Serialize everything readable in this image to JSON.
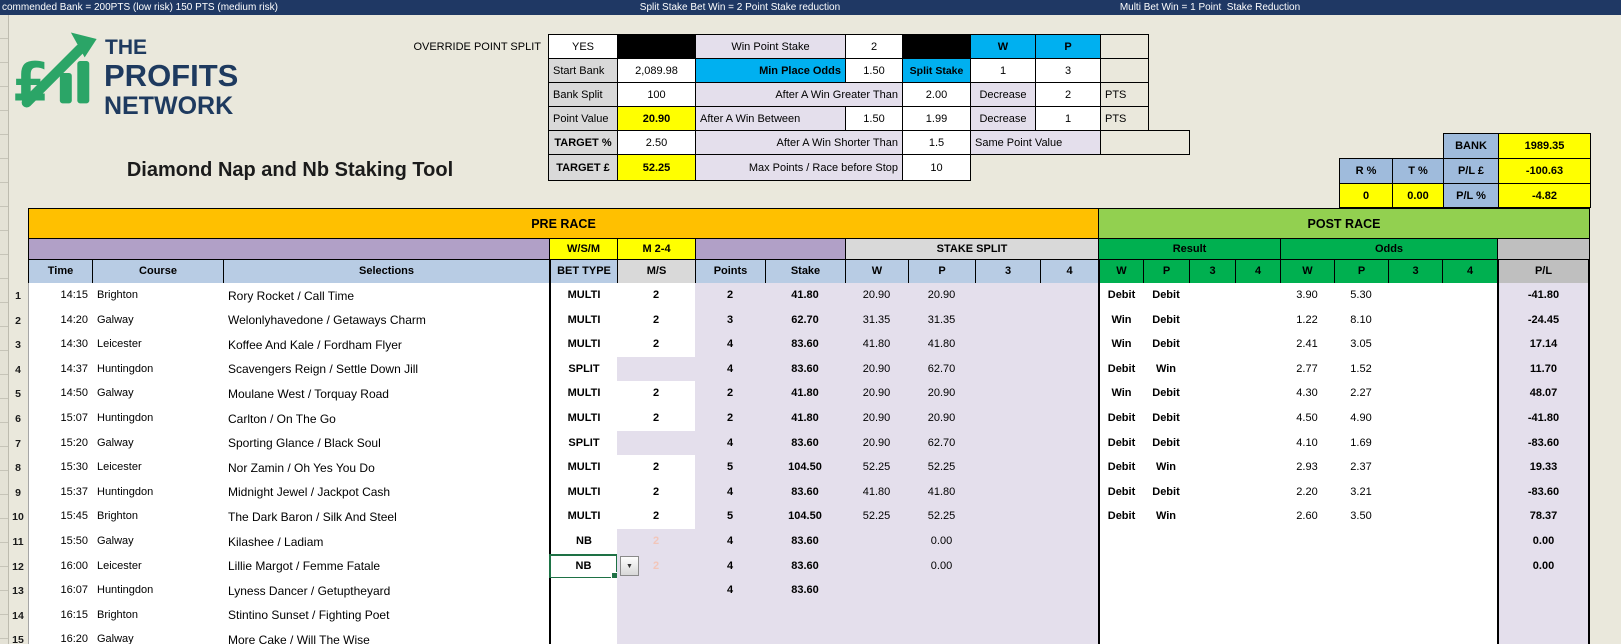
{
  "top_bar": {
    "left": "commended Bank = 200PTS (low risk) 150 PTS (medium risk)",
    "center": "Split Stake Bet Win = 2 Point Stake reduction",
    "right": "Multi Bet Win = 1 Point  Stake Reduction"
  },
  "logo": {
    "line1": "THE",
    "line2": "PROFITS",
    "line3": "NETWORK",
    "icon": "pound-growth-chart-icon"
  },
  "title": "Diamond Nap and Nb Staking Tool",
  "settings": {
    "override_label": "OVERRIDE POINT SPLIT",
    "override_value": "YES",
    "start_bank_label": "Start Bank",
    "start_bank_value": "2,089.98",
    "bank_split_label": "Bank Split",
    "bank_split_value": "100",
    "point_value_label": "Point Value",
    "point_value_value": "20.90",
    "target_pct_label": "TARGET %",
    "target_pct_value": "2.50",
    "target_gbp_label": "TARGET £",
    "target_gbp_value": "52.25",
    "win_point_stake_label": "Win Point Stake",
    "win_point_stake_value": "2",
    "min_place_odds_label": "Min Place Odds",
    "min_place_odds_value": "1.50",
    "after_win_greater_label": "After A Win Greater Than",
    "after_win_greater_value": "2.00",
    "after_win_between_label": "After A Win Between",
    "after_win_between_low": "1.50",
    "after_win_between_high": "1.99",
    "after_win_shorter_label": "After A Win Shorter Than",
    "after_win_shorter_value": "1.5",
    "max_points_label": "Max Points / Race before Stop",
    "max_points_value": "10",
    "w_header": "W",
    "p_header": "P",
    "split_stake_label": "Split Stake",
    "split_stake_w": "1",
    "split_stake_p": "3",
    "decrease1_label": "Decrease",
    "decrease1_value": "2",
    "decrease1_unit": "PTS",
    "decrease2_label": "Decrease",
    "decrease2_value": "1",
    "decrease2_unit": "PTS",
    "same_point_label": "Same Point Value"
  },
  "summary": {
    "bank_label": "BANK",
    "bank_value": "1989.35",
    "r_pct_label": "R %",
    "t_pct_label": "T %",
    "pl_gbp_label": "P/L £",
    "r_pct_value": "0",
    "t_pct_value": "0.00",
    "pl_gbp_value": "-100.63",
    "pl_pct_label": "P/L %",
    "pl_pct_value": "-4.82"
  },
  "table": {
    "pre_race_label": "PRE RACE",
    "post_race_label": "POST RACE",
    "wsm_label": "W/S/M",
    "m24_label": "M 2-4",
    "stake_split_label": "STAKE SPLIT",
    "result_label": "Result",
    "odds_label": "Odds",
    "headers": [
      "Time",
      "Course",
      "Selections",
      "BET TYPE",
      "M/S",
      "Points",
      "Stake",
      "W",
      "P",
      "3",
      "4",
      "W",
      "P",
      "3",
      "4",
      "W",
      "P",
      "3",
      "4",
      "P/L"
    ],
    "rows": [
      {
        "num": "1",
        "time": "14:15",
        "course": "Brighton",
        "selection": "Rory Rocket / Call Time",
        "bet_type": "MULTI",
        "ms": "2",
        "ms_filled": true,
        "points": "2",
        "stake": "41.80",
        "split_w": "20.90",
        "split_p": "20.90",
        "split_3": "",
        "split_4": "",
        "res_w": "Debit",
        "res_p": "Debit",
        "res_3": "",
        "res_4": "",
        "odds_w": "3.90",
        "odds_p": "5.30",
        "odds_3": "",
        "odds_4": "",
        "pl": "-41.80"
      },
      {
        "num": "2",
        "time": "14:20",
        "course": "Galway",
        "selection": "Welonlyhavedone / Getaways Charm",
        "bet_type": "MULTI",
        "ms": "2",
        "ms_filled": true,
        "points": "3",
        "stake": "62.70",
        "split_w": "31.35",
        "split_p": "31.35",
        "split_3": "",
        "split_4": "",
        "res_w": "Win",
        "res_p": "Debit",
        "res_3": "",
        "res_4": "",
        "odds_w": "1.22",
        "odds_p": "8.10",
        "odds_3": "",
        "odds_4": "",
        "pl": "-24.45"
      },
      {
        "num": "3",
        "time": "14:30",
        "course": "Leicester",
        "selection": "Koffee And Kale / Fordham Flyer",
        "bet_type": "MULTI",
        "ms": "2",
        "ms_filled": true,
        "points": "4",
        "stake": "83.60",
        "split_w": "41.80",
        "split_p": "41.80",
        "split_3": "",
        "split_4": "",
        "res_w": "Win",
        "res_p": "Debit",
        "res_3": "",
        "res_4": "",
        "odds_w": "2.41",
        "odds_p": "3.05",
        "odds_3": "",
        "odds_4": "",
        "pl": "17.14"
      },
      {
        "num": "4",
        "time": "14:37",
        "course": "Huntingdon",
        "selection": "Scavengers Reign / Settle Down Jill",
        "bet_type": "SPLIT",
        "ms": "",
        "ms_filled": false,
        "points": "4",
        "stake": "83.60",
        "split_w": "20.90",
        "split_p": "62.70",
        "split_3": "",
        "split_4": "",
        "res_w": "Debit",
        "res_p": "Win",
        "res_3": "",
        "res_4": "",
        "odds_w": "2.77",
        "odds_p": "1.52",
        "odds_3": "",
        "odds_4": "",
        "pl": "11.70"
      },
      {
        "num": "5",
        "time": "14:50",
        "course": "Galway",
        "selection": "Moulane West / Torquay Road",
        "bet_type": "MULTI",
        "ms": "2",
        "ms_filled": true,
        "points": "2",
        "stake": "41.80",
        "split_w": "20.90",
        "split_p": "20.90",
        "split_3": "",
        "split_4": "",
        "res_w": "Win",
        "res_p": "Debit",
        "res_3": "",
        "res_4": "",
        "odds_w": "4.30",
        "odds_p": "2.27",
        "odds_3": "",
        "odds_4": "",
        "pl": "48.07"
      },
      {
        "num": "6",
        "time": "15:07",
        "course": "Huntingdon",
        "selection": "Carlton / On The Go",
        "bet_type": "MULTI",
        "ms": "2",
        "ms_filled": true,
        "points": "2",
        "stake": "41.80",
        "split_w": "20.90",
        "split_p": "20.90",
        "split_3": "",
        "split_4": "",
        "res_w": "Debit",
        "res_p": "Debit",
        "res_3": "",
        "res_4": "",
        "odds_w": "4.50",
        "odds_p": "4.90",
        "odds_3": "",
        "odds_4": "",
        "pl": "-41.80"
      },
      {
        "num": "7",
        "time": "15:20",
        "course": "Galway",
        "selection": "Sporting Glance / Black Soul",
        "bet_type": "SPLIT",
        "ms": "",
        "ms_filled": false,
        "points": "4",
        "stake": "83.60",
        "split_w": "20.90",
        "split_p": "62.70",
        "split_3": "",
        "split_4": "",
        "res_w": "Debit",
        "res_p": "Debit",
        "res_3": "",
        "res_4": "",
        "odds_w": "4.10",
        "odds_p": "1.69",
        "odds_3": "",
        "odds_4": "",
        "pl": "-83.60"
      },
      {
        "num": "8",
        "time": "15:30",
        "course": "Leicester",
        "selection": "Nor Zamin / Oh Yes You Do",
        "bet_type": "MULTI",
        "ms": "2",
        "ms_filled": true,
        "points": "5",
        "stake": "104.50",
        "split_w": "52.25",
        "split_p": "52.25",
        "split_3": "",
        "split_4": "",
        "res_w": "Debit",
        "res_p": "Win",
        "res_3": "",
        "res_4": "",
        "odds_w": "2.93",
        "odds_p": "2.37",
        "odds_3": "",
        "odds_4": "",
        "pl": "19.33"
      },
      {
        "num": "9",
        "time": "15:37",
        "course": "Huntingdon",
        "selection": "Midnight Jewel / Jackpot Cash",
        "bet_type": "MULTI",
        "ms": "2",
        "ms_filled": true,
        "points": "4",
        "stake": "83.60",
        "split_w": "41.80",
        "split_p": "41.80",
        "split_3": "",
        "split_4": "",
        "res_w": "Debit",
        "res_p": "Debit",
        "res_3": "",
        "res_4": "",
        "odds_w": "2.20",
        "odds_p": "3.21",
        "odds_3": "",
        "odds_4": "",
        "pl": "-83.60"
      },
      {
        "num": "10",
        "time": "15:45",
        "course": "Brighton",
        "selection": "The Dark Baron / Silk And Steel",
        "bet_type": "MULTI",
        "ms": "2",
        "ms_filled": true,
        "points": "5",
        "stake": "104.50",
        "split_w": "52.25",
        "split_p": "52.25",
        "split_3": "",
        "split_4": "",
        "res_w": "Debit",
        "res_p": "Win",
        "res_3": "",
        "res_4": "",
        "odds_w": "2.60",
        "odds_p": "3.50",
        "odds_3": "",
        "odds_4": "",
        "pl": "78.37"
      },
      {
        "num": "11",
        "time": "15:50",
        "course": "Galway",
        "selection": "Kilashee / Ladiam",
        "bet_type": "NB",
        "ms": "2",
        "ms_filled": false,
        "ms_ghost": true,
        "points": "4",
        "stake": "83.60",
        "split_w": "",
        "split_p": "0.00",
        "split_3": "",
        "split_4": "",
        "res_w": "",
        "res_p": "",
        "res_3": "",
        "res_4": "",
        "odds_w": "",
        "odds_p": "",
        "odds_3": "",
        "odds_4": "",
        "pl": "0.00"
      },
      {
        "num": "12",
        "time": "16:00",
        "course": "Leicester",
        "selection": "Lillie Margot / Femme Fatale",
        "bet_type": "NB",
        "selected": true,
        "has_dropdown": true,
        "ms": "2",
        "ms_filled": false,
        "ms_ghost": true,
        "points": "4",
        "stake": "83.60",
        "split_w": "",
        "split_p": "0.00",
        "split_3": "",
        "split_4": "",
        "res_w": "",
        "res_p": "",
        "res_3": "",
        "res_4": "",
        "odds_w": "",
        "odds_p": "",
        "odds_3": "",
        "odds_4": "",
        "pl": "0.00"
      },
      {
        "num": "13",
        "time": "16:07",
        "course": "Huntingdon",
        "selection": "Lyness Dancer / Getuptheyard",
        "bet_type": "",
        "ms": "",
        "ms_filled": false,
        "points": "4",
        "stake": "83.60",
        "split_w": "",
        "split_p": "",
        "split_3": "",
        "split_4": "",
        "res_w": "",
        "res_p": "",
        "res_3": "",
        "res_4": "",
        "odds_w": "",
        "odds_p": "",
        "odds_3": "",
        "odds_4": "",
        "pl": ""
      },
      {
        "num": "14",
        "time": "16:15",
        "course": "Brighton",
        "selection": "Stintino Sunset / Fighting Poet",
        "bet_type": "",
        "ms": "",
        "ms_filled": false,
        "points": "",
        "stake": "",
        "split_w": "",
        "split_p": "",
        "split_3": "",
        "split_4": "",
        "res_w": "",
        "res_p": "",
        "res_3": "",
        "res_4": "",
        "odds_w": "",
        "odds_p": "",
        "odds_3": "",
        "odds_4": "",
        "pl": ""
      },
      {
        "num": "15",
        "time": "16:20",
        "course": "Galway",
        "selection": "More Cake / Will The Wise",
        "bet_type": "",
        "ms": "",
        "ms_filled": false,
        "points": "",
        "stake": "",
        "split_w": "",
        "split_p": "",
        "split_3": "",
        "split_4": "",
        "res_w": "",
        "res_p": "",
        "res_3": "",
        "res_4": "",
        "odds_w": "",
        "odds_p": "",
        "odds_3": "",
        "odds_4": "",
        "pl": ""
      }
    ]
  },
  "colors": {
    "navy_bar": "#1F3864",
    "orange": "#FFC000",
    "post_race_green": "#92D050",
    "result_green": "#00B050",
    "cyan": "#00B0F0",
    "yellow": "#FFFF00",
    "lavender": "#E4DFEC",
    "purple_band": "#B1A0C7",
    "header_blue": "#B8CCE4",
    "summary_blue": "#9FBBDC",
    "logo_green": "#2BA567",
    "logo_navy": "#1E3A5F",
    "selection_green": "#1E7145"
  }
}
